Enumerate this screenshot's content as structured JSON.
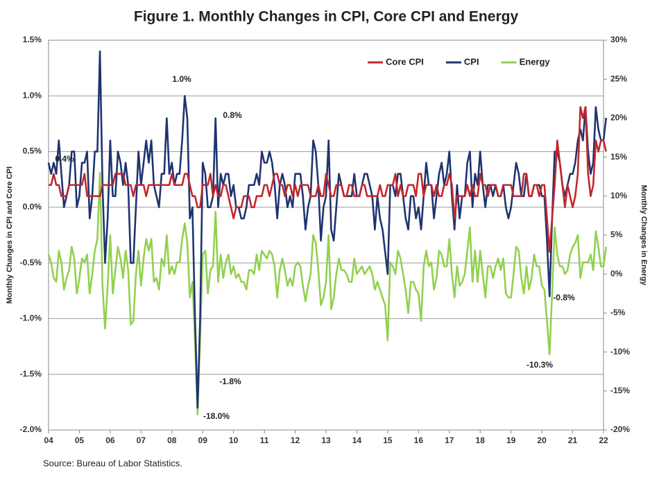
{
  "chart_data": {
    "type": "line",
    "title": "Figure 1. Monthly Changes in CPI, Core CPI and Energy",
    "y_label": "Monthly Changes in CPI and Core CPI",
    "y2_label": "Monthly Changes in Energy",
    "source": "Source: Bureau of Labor Statistics.",
    "legend": "top-right",
    "grid": true,
    "categories": [
      "04",
      null,
      null,
      null,
      null,
      null,
      null,
      null,
      null,
      null,
      null,
      null,
      "05",
      null,
      null,
      null,
      null,
      null,
      null,
      null,
      null,
      null,
      null,
      null,
      "06",
      null,
      null,
      null,
      null,
      null,
      null,
      null,
      null,
      null,
      null,
      null,
      "07",
      null,
      null,
      null,
      null,
      null,
      null,
      null,
      null,
      null,
      null,
      null,
      "08",
      null,
      null,
      null,
      null,
      null,
      null,
      null,
      null,
      null,
      null,
      null,
      "09",
      null,
      null,
      null,
      null,
      null,
      null,
      null,
      null,
      null,
      null,
      null,
      "10",
      null,
      null,
      null,
      null,
      null,
      null,
      null,
      null,
      null,
      null,
      null,
      "11",
      null,
      null,
      null,
      null,
      null,
      null,
      null,
      null,
      null,
      null,
      null,
      "12",
      null,
      null,
      null,
      null,
      null,
      null,
      null,
      null,
      null,
      null,
      null,
      "13",
      null,
      null,
      null,
      null,
      null,
      null,
      null,
      null,
      null,
      null,
      null,
      "14",
      null,
      null,
      null,
      null,
      null,
      null,
      null,
      null,
      null,
      null,
      null,
      "15",
      null,
      null,
      null,
      null,
      null,
      null,
      null,
      null,
      null,
      null,
      null,
      "16",
      null,
      null,
      null,
      null,
      null,
      null,
      null,
      null,
      null,
      null,
      null,
      "17",
      null,
      null,
      null,
      null,
      null,
      null,
      null,
      null,
      null,
      null,
      null,
      "18",
      null,
      null,
      null,
      null,
      null,
      null,
      null,
      null,
      null,
      null,
      null,
      "19",
      null,
      null,
      null,
      null,
      null,
      null,
      null,
      null,
      null,
      null,
      null,
      "20",
      null,
      null,
      null,
      null,
      null,
      null,
      null,
      null,
      null,
      null,
      null,
      "21",
      null,
      null,
      null,
      null,
      null,
      null,
      null,
      null,
      null,
      null,
      null,
      "22",
      null
    ],
    "ylim": [
      -2.0,
      1.5
    ],
    "yticks": [
      {
        "value": -2.0,
        "label": "-2.0%"
      },
      {
        "value": -1.5,
        "label": "-1.5%"
      },
      {
        "value": -1.0,
        "label": "-1.0%"
      },
      {
        "value": -0.5,
        "label": "-0.5%"
      },
      {
        "value": 0,
        "label": "0.0%"
      },
      {
        "value": 0.5,
        "label": "0.5%"
      },
      {
        "value": 1.0,
        "label": "1.0%"
      },
      {
        "value": 1.5,
        "label": "1.5%"
      }
    ],
    "y2lim": [
      -20,
      30
    ],
    "y2ticks": [
      {
        "value": -20,
        "label": "-20%"
      },
      {
        "value": -15,
        "label": "-15%"
      },
      {
        "value": -10,
        "label": "-10%"
      },
      {
        "value": -5,
        "label": "-5%"
      },
      {
        "value": 0,
        "label": "0%"
      },
      {
        "value": 5,
        "label": "5%"
      },
      {
        "value": 10,
        "label": "10%"
      },
      {
        "value": 15,
        "label": "15%"
      },
      {
        "value": 20,
        "label": "20%"
      },
      {
        "value": 25,
        "label": "25%"
      },
      {
        "value": 30,
        "label": "30%"
      }
    ],
    "series": [
      {
        "name": "Core CPI",
        "color": "#c0272d",
        "values": [
          0.2,
          0.2,
          0.3,
          0.2,
          0.2,
          0.1,
          0.1,
          0.1,
          0.2,
          0.2,
          0.2,
          0.2,
          0.2,
          0.2,
          0.3,
          0.1,
          0.1,
          0.1,
          0.1,
          0.1,
          0.1,
          0.2,
          0.2,
          0.2,
          0.2,
          0.2,
          0.3,
          0.3,
          0.3,
          0.3,
          0.2,
          0.2,
          0.2,
          0.1,
          0.2,
          0.2,
          0.2,
          0.2,
          0.1,
          0.2,
          0.2,
          0.2,
          0.2,
          0.2,
          0.2,
          0.2,
          0.2,
          0.2,
          0.3,
          0.2,
          0.2,
          0.2,
          0.2,
          0.3,
          0.3,
          0.2,
          0.1,
          0.1,
          0.0,
          0.0,
          0.2,
          0.2,
          0.2,
          0.3,
          0.1,
          0.2,
          0.1,
          0.1,
          0.2,
          0.2,
          0.1,
          0.0,
          -0.1,
          0.0,
          0.0,
          0.0,
          0.1,
          0.1,
          0.1,
          0.0,
          0.0,
          0.1,
          0.1,
          0.1,
          0.2,
          0.2,
          0.1,
          0.2,
          0.3,
          0.3,
          0.2,
          0.2,
          0.1,
          0.2,
          0.2,
          0.1,
          0.2,
          0.1,
          0.2,
          0.2,
          0.2,
          0.2,
          0.1,
          0.1,
          0.1,
          0.2,
          0.1,
          0.1,
          0.3,
          0.2,
          0.1,
          0.1,
          0.2,
          0.2,
          0.2,
          0.1,
          0.1,
          0.2,
          0.2,
          0.1,
          0.1,
          0.1,
          0.2,
          0.2,
          0.1,
          0.1,
          0.1,
          0.1,
          0.1,
          0.2,
          0.1,
          0.1,
          0.2,
          0.2,
          0.2,
          0.3,
          0.1,
          0.2,
          0.1,
          0.1,
          0.2,
          0.2,
          0.2,
          0.1,
          0.3,
          0.3,
          0.1,
          0.2,
          0.2,
          0.2,
          0.1,
          0.2,
          0.1,
          0.1,
          0.2,
          0.2,
          0.3,
          0.2,
          -0.1,
          0.1,
          0.1,
          0.1,
          0.1,
          0.2,
          0.1,
          0.2,
          0.1,
          0.1,
          0.3,
          0.2,
          0.2,
          0.1,
          0.2,
          0.2,
          0.2,
          0.1,
          0.1,
          0.2,
          0.2,
          0.2,
          0.2,
          0.1,
          0.1,
          0.1,
          0.1,
          0.3,
          0.3,
          0.1,
          0.1,
          0.2,
          0.2,
          0.1,
          0.2,
          0.2,
          -0.1,
          -0.4,
          -0.1,
          0.2,
          0.6,
          0.4,
          0.2,
          0.0,
          0.2,
          0.1,
          0.0,
          0.1,
          0.3,
          0.9,
          0.8,
          0.9,
          0.3,
          0.1,
          0.2,
          0.6,
          0.5,
          0.6,
          0.6,
          0.5
        ]
      },
      {
        "name": "CPI",
        "color": "#1f3370",
        "values": [
          0.4,
          0.3,
          0.4,
          0.3,
          0.6,
          0.3,
          0.0,
          0.1,
          0.2,
          0.5,
          0.5,
          0.0,
          0.1,
          0.4,
          0.4,
          0.5,
          -0.1,
          0.1,
          0.5,
          0.5,
          1.4,
          0.2,
          -0.5,
          -0.1,
          0.6,
          0.1,
          0.1,
          0.5,
          0.4,
          0.2,
          0.4,
          0.2,
          -0.5,
          -0.5,
          0.0,
          0.5,
          0.2,
          0.4,
          0.6,
          0.4,
          0.6,
          0.2,
          0.1,
          0.0,
          0.3,
          0.3,
          0.8,
          0.3,
          0.4,
          0.2,
          0.3,
          0.3,
          0.6,
          1.0,
          0.8,
          -0.1,
          0.0,
          -1.0,
          -1.8,
          -1.0,
          0.4,
          0.3,
          0.0,
          0.0,
          0.1,
          0.8,
          0.0,
          0.3,
          0.2,
          0.3,
          0.3,
          0.1,
          0.2,
          0.0,
          0.0,
          -0.1,
          -0.1,
          0.0,
          0.2,
          0.2,
          0.2,
          0.3,
          0.2,
          0.5,
          0.4,
          0.4,
          0.5,
          0.4,
          0.2,
          -0.1,
          0.2,
          0.3,
          0.2,
          0.0,
          0.1,
          0.0,
          0.3,
          0.3,
          0.3,
          0.1,
          -0.2,
          0.0,
          0.1,
          0.6,
          0.5,
          0.2,
          -0.3,
          0.0,
          0.1,
          0.6,
          -0.2,
          -0.3,
          0.0,
          0.3,
          0.2,
          0.1,
          0.1,
          0.1,
          0.1,
          0.3,
          0.1,
          0.1,
          0.2,
          0.3,
          0.3,
          0.2,
          0.1,
          -0.2,
          0.1,
          -0.1,
          -0.2,
          -0.4,
          -0.6,
          0.2,
          0.2,
          0.1,
          0.3,
          0.3,
          0.1,
          -0.1,
          -0.2,
          0.1,
          0.1,
          -0.1,
          0.0,
          -0.2,
          0.1,
          0.4,
          0.2,
          0.2,
          -0.1,
          0.1,
          0.3,
          0.4,
          0.2,
          0.3,
          0.5,
          0.1,
          -0.2,
          0.2,
          -0.1,
          0.1,
          0.1,
          0.4,
          0.5,
          0.0,
          0.3,
          0.2,
          0.5,
          0.2,
          0.0,
          0.2,
          0.2,
          0.1,
          0.2,
          0.1,
          0.1,
          0.2,
          0.0,
          -0.1,
          0.0,
          0.2,
          0.4,
          0.3,
          0.1,
          0.1,
          0.3,
          0.1,
          0.1,
          0.2,
          0.2,
          0.2,
          0.1,
          0.1,
          -0.3,
          -0.8,
          -0.1,
          0.5,
          0.5,
          0.4,
          0.2,
          0.1,
          0.2,
          0.3,
          0.3,
          0.4,
          0.6,
          0.7,
          0.6,
          0.9,
          0.5,
          0.3,
          0.4,
          0.9,
          0.7,
          0.6,
          0.6,
          0.8
        ]
      },
      {
        "name": "Energy",
        "color": "#92d050",
        "axis": "y2",
        "values": [
          2.5,
          1.5,
          -0.5,
          -1.0,
          3.0,
          1.5,
          -2.0,
          -0.5,
          0.5,
          3.5,
          2.0,
          -2.5,
          -0.5,
          2.0,
          1.5,
          2.5,
          -2.5,
          0.0,
          3.0,
          4.5,
          13.0,
          -1.5,
          -7.0,
          -1.5,
          5.0,
          -2.5,
          0.5,
          3.5,
          2.0,
          -0.5,
          3.0,
          0.5,
          -6.5,
          -6.0,
          0.0,
          3.0,
          -1.5,
          2.0,
          4.5,
          3.0,
          4.5,
          -1.0,
          -0.5,
          -2.0,
          2.0,
          1.0,
          5.0,
          0.0,
          1.0,
          0.0,
          1.5,
          1.5,
          4.5,
          6.5,
          4.0,
          -3.0,
          -1.0,
          -8.5,
          -18.0,
          -8.0,
          2.5,
          3.0,
          -2.5,
          0.5,
          1.0,
          8.0,
          -1.0,
          2.5,
          -0.5,
          1.5,
          2.5,
          0.0,
          1.0,
          -0.5,
          0.0,
          -1.0,
          -1.0,
          -2.0,
          0.5,
          0.5,
          0.0,
          2.5,
          0.5,
          3.0,
          2.5,
          2.0,
          3.0,
          2.5,
          1.0,
          -3.0,
          0.5,
          2.0,
          0.5,
          -1.5,
          -0.5,
          -1.5,
          1.0,
          1.5,
          1.0,
          -1.5,
          -3.5,
          -1.5,
          0.0,
          5.0,
          4.0,
          0.5,
          -4.0,
          -3.0,
          -1.0,
          5.0,
          -4.5,
          -3.0,
          0.0,
          2.0,
          0.5,
          0.5,
          0.0,
          -1.0,
          -1.0,
          2.0,
          0.0,
          0.5,
          1.0,
          0.0,
          0.5,
          1.0,
          0.0,
          -2.0,
          -1.0,
          -2.0,
          -3.0,
          -4.0,
          -8.5,
          1.5,
          1.0,
          0.0,
          3.0,
          2.0,
          0.0,
          -2.0,
          -5.0,
          -1.0,
          -1.0,
          -2.0,
          -2.5,
          -6.0,
          1.0,
          3.0,
          1.0,
          1.5,
          -2.0,
          -0.5,
          3.0,
          2.5,
          1.0,
          1.0,
          4.5,
          0.0,
          -3.0,
          1.0,
          -1.5,
          -1.0,
          0.0,
          3.0,
          6.0,
          -1.0,
          3.0,
          -1.0,
          3.0,
          0.0,
          -3.0,
          1.0,
          1.0,
          -0.5,
          1.0,
          2.0,
          0.5,
          2.0,
          -2.5,
          -3.0,
          -3.0,
          0.0,
          3.5,
          3.0,
          -0.5,
          -2.5,
          1.0,
          -2.0,
          -0.5,
          2.5,
          1.0,
          1.0,
          -1.5,
          -2.0,
          -6.0,
          -10.3,
          -2.5,
          6.0,
          2.5,
          1.0,
          1.0,
          0.0,
          0.5,
          2.5,
          3.5,
          4.0,
          5.0,
          -0.5,
          1.5,
          1.5,
          1.5,
          2.5,
          0.5,
          5.5,
          3.5,
          1.0,
          1.0,
          3.5
        ]
      }
    ],
    "annotations": [
      "0.4%",
      "1.0%",
      "0.8%",
      "-1.8%",
      "-18.0%",
      "-0.8%",
      "-10.3%"
    ]
  }
}
